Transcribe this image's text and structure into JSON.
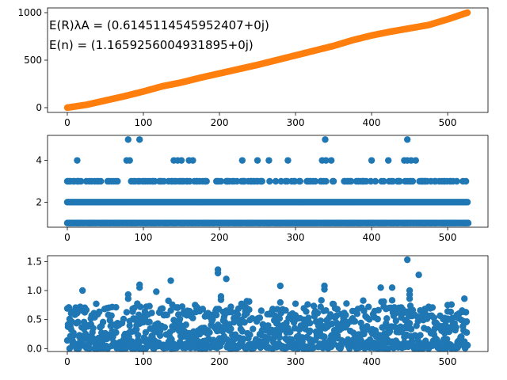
{
  "colors": {
    "orange": "#ff7f0e",
    "blue": "#1f77b4",
    "axis": "#000000",
    "background": "#ffffff"
  },
  "chart_data": [
    {
      "type": "scatter",
      "title": "",
      "xlabel": "",
      "ylabel": "",
      "xlim": [
        -26,
        553
      ],
      "ylim": [
        -50,
        1050
      ],
      "xticks": [
        0,
        100,
        200,
        300,
        400,
        500
      ],
      "yticks": [
        0,
        500,
        1000
      ],
      "color": "#ff7f0e",
      "annotations": [
        "E(R)λA =  (0.6145114545952407+0j)",
        "E(n) =  (1.1659256004931895+0j)"
      ],
      "points_description": "monotonically increasing cumulative sum; y rises from 0 at x=0 to about 1000 at x=526",
      "x": [
        0,
        25,
        50,
        75,
        100,
        125,
        150,
        175,
        200,
        225,
        250,
        275,
        300,
        325,
        350,
        375,
        400,
        425,
        450,
        475,
        500,
        526
      ],
      "y": [
        0,
        30,
        75,
        120,
        170,
        225,
        265,
        315,
        360,
        405,
        450,
        500,
        550,
        600,
        650,
        710,
        760,
        800,
        835,
        870,
        930,
        1000
      ]
    },
    {
      "type": "scatter",
      "title": "",
      "xlabel": "",
      "ylabel": "",
      "xlim": [
        -26,
        553
      ],
      "ylim": [
        0.8,
        5.2
      ],
      "xticks": [
        0,
        100,
        200,
        300,
        400,
        500
      ],
      "yticks": [
        2,
        4
      ],
      "color": "#1f77b4",
      "levels": [
        1,
        2,
        3,
        4,
        5
      ],
      "x_level4": [
        13,
        78,
        82,
        140,
        145,
        150,
        160,
        165,
        230,
        250,
        265,
        290,
        335,
        340,
        347,
        400,
        422,
        443,
        447,
        452,
        458
      ],
      "x_level5": [
        80,
        95,
        339,
        447
      ]
    },
    {
      "type": "scatter",
      "title": "",
      "xlabel": "",
      "ylabel": "",
      "xlim": [
        -26,
        553
      ],
      "ylim": [
        -0.05,
        1.6
      ],
      "xticks": [
        0,
        100,
        200,
        300,
        400,
        500
      ],
      "yticks": [
        0.0,
        0.5,
        1.0,
        1.5
      ],
      "ytick_labels": [
        "0.0",
        "0.5",
        "1.0",
        "1.5"
      ],
      "color": "#1f77b4",
      "highlights": [
        {
          "x": 447,
          "y": 1.53
        },
        {
          "x": 198,
          "y": 1.36
        },
        {
          "x": 198,
          "y": 1.3
        },
        {
          "x": 462,
          "y": 1.27
        },
        {
          "x": 209,
          "y": 1.2
        },
        {
          "x": 136,
          "y": 1.17
        },
        {
          "x": 95,
          "y": 1.1
        },
        {
          "x": 95,
          "y": 1.05
        },
        {
          "x": 338,
          "y": 1.08
        },
        {
          "x": 338,
          "y": 1.02
        },
        {
          "x": 280,
          "y": 1.08
        },
        {
          "x": 412,
          "y": 1.05
        },
        {
          "x": 427,
          "y": 1.05
        },
        {
          "x": 450,
          "y": 1.0
        },
        {
          "x": 450,
          "y": 0.93
        },
        {
          "x": 450,
          "y": 0.86
        },
        {
          "x": 20,
          "y": 1.0
        },
        {
          "x": 117,
          "y": 0.98
        },
        {
          "x": 80,
          "y": 0.93
        },
        {
          "x": 80,
          "y": 0.86
        },
        {
          "x": 522,
          "y": 0.86
        },
        {
          "x": 202,
          "y": 0.9
        },
        {
          "x": 500,
          "y": 0.75
        }
      ]
    }
  ]
}
